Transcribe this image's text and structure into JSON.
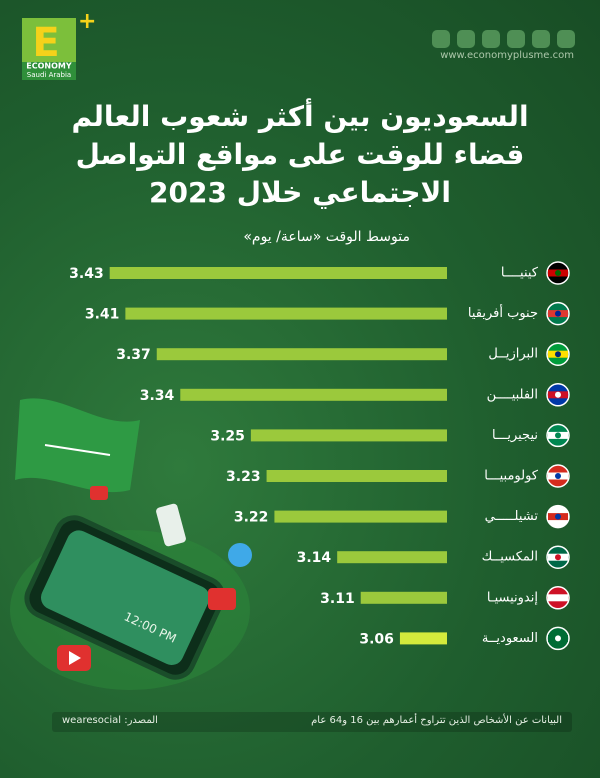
{
  "logo": {
    "letter": "E",
    "name": "ECONOMY",
    "region": "Saudi Arabia"
  },
  "website": "www.economyplusme.com",
  "footer": {
    "note": "البيانات عن الأشخاص الذين تتراوح أعمارهم بين 16 و64 عام",
    "source": "المصدر: wearesocial"
  },
  "chart_data": {
    "type": "bar",
    "orientation": "horizontal",
    "title": [
      "السعوديون بين أكثر شعوب العالم",
      "قضاء للوقت على مواقع التواصل",
      "الاجتماعي خلال 2023"
    ],
    "subtitle": "متوسط الوقت «ساعة/ يوم»",
    "categories": [
      "كينيــــا",
      "جنوب أفريقيا",
      "البرازيــل",
      "الفلبيــــن",
      "نيجيريـــا",
      "كولومبيـــا",
      "تشيلـــــي",
      "المكسيــك",
      "إندونيسيـا",
      "السعوديــة"
    ],
    "values": [
      3.43,
      3.41,
      3.37,
      3.34,
      3.25,
      3.23,
      3.22,
      3.14,
      3.11,
      3.06
    ],
    "colors": [
      "#9bc93c",
      "#9bc93c",
      "#9bc93c",
      "#9bc93c",
      "#9bc93c",
      "#9bc93c",
      "#9bc93c",
      "#9bc93c",
      "#9bc93c",
      "#d4ea3c"
    ],
    "xlim": [
      3,
      3.45
    ]
  }
}
